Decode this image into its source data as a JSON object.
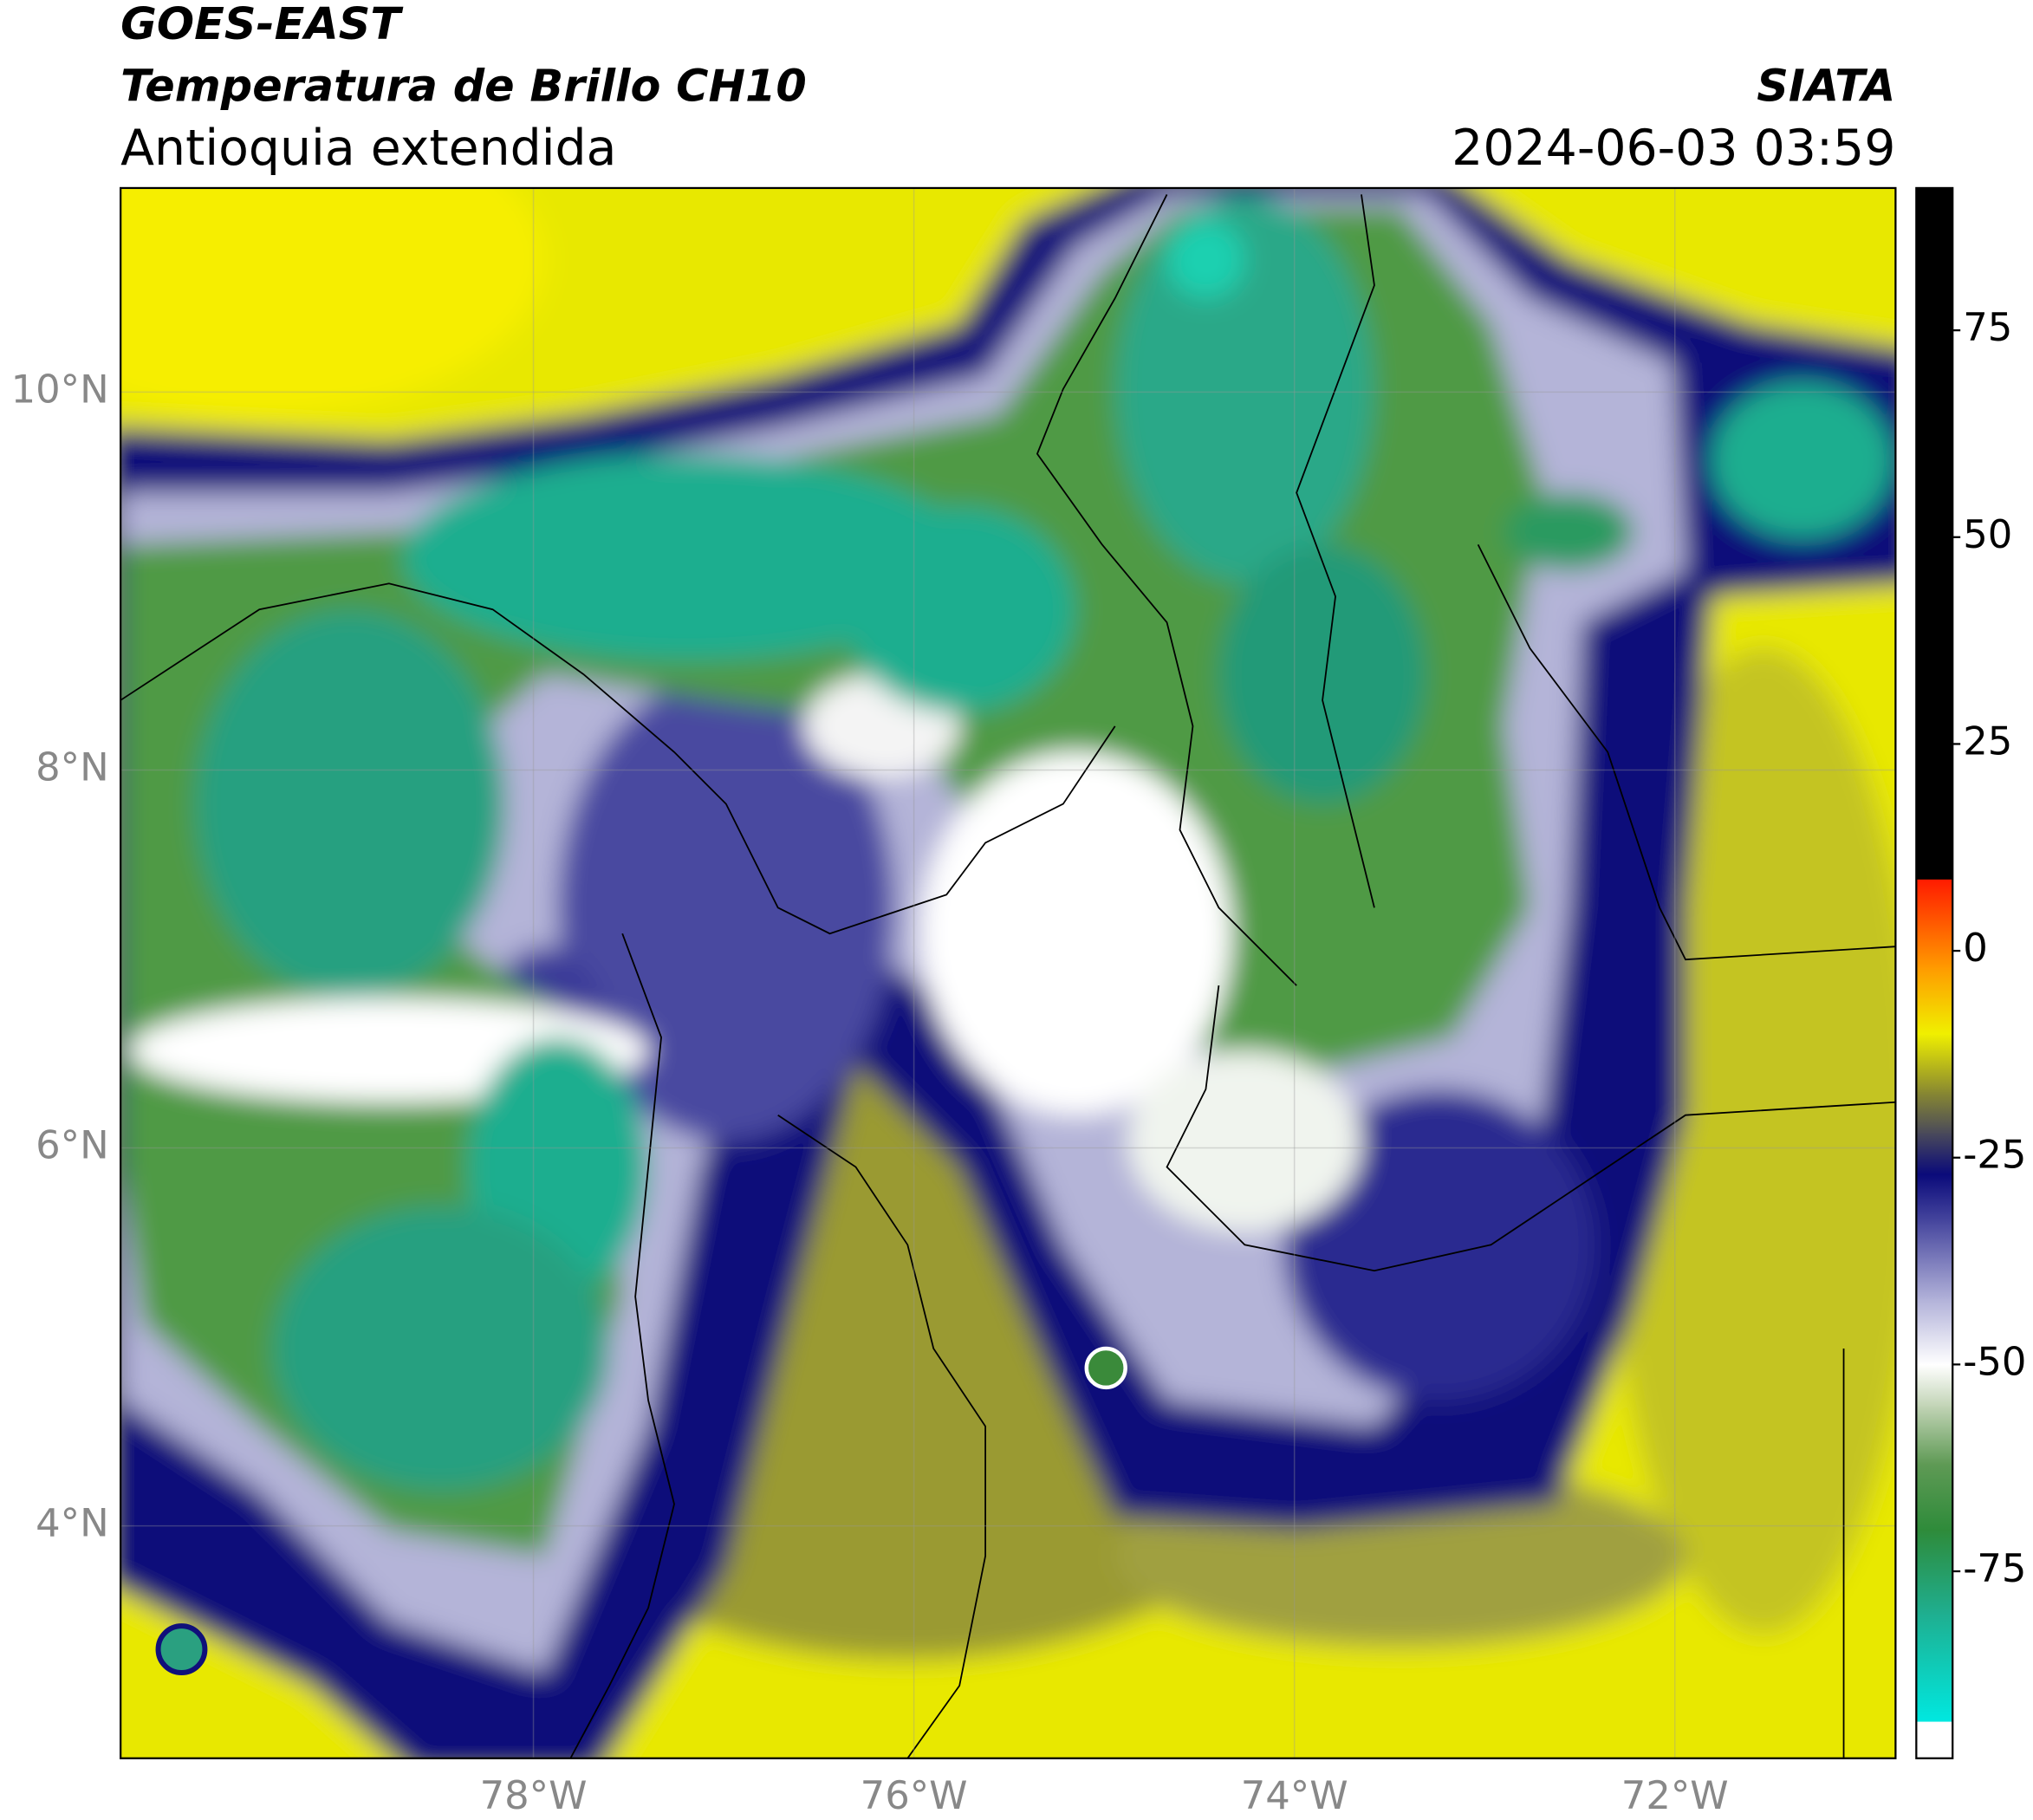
{
  "header": {
    "satellite": "GOES-EAST",
    "product": "Temperatura de Brillo CH10",
    "region": "Antioquia extendida",
    "source": "SIATA",
    "timestamp": "2024-06-03 03:59"
  },
  "map": {
    "xlim": [
      -80.17,
      -70.84
    ],
    "ylim": [
      2.77,
      11.08
    ],
    "xticks": [
      {
        "value": -78,
        "label": "78°W"
      },
      {
        "value": -76,
        "label": "76°W"
      },
      {
        "value": -74,
        "label": "74°W"
      },
      {
        "value": -72,
        "label": "72°W"
      }
    ],
    "yticks": [
      {
        "value": 4,
        "label": "4°N"
      },
      {
        "value": 6,
        "label": "6°N"
      },
      {
        "value": 8,
        "label": "8°N"
      },
      {
        "value": 10,
        "label": "10°N"
      }
    ],
    "grid": true
  },
  "colorbar": {
    "lim": [
      -97.6,
      92.2
    ],
    "ticks": [
      -75,
      -50,
      -25,
      0,
      25,
      50,
      75
    ],
    "stops": [
      {
        "value": -97.6,
        "color": "#ffffff"
      },
      {
        "value": -93.1,
        "color": "#ffffff"
      },
      {
        "value": -93.1,
        "color": "#00e8e0"
      },
      {
        "value": -80,
        "color": "#1fae8f"
      },
      {
        "value": -70,
        "color": "#2e8b3a"
      },
      {
        "value": -62,
        "color": "#5f9a55"
      },
      {
        "value": -55,
        "color": "#c2d4b6"
      },
      {
        "value": -50,
        "color": "#ffffff"
      },
      {
        "value": -42,
        "color": "#b0b0d8"
      },
      {
        "value": -33,
        "color": "#4a4aa0"
      },
      {
        "value": -27,
        "color": "#0a0a7a"
      },
      {
        "value": -22,
        "color": "#4a4a5a"
      },
      {
        "value": -17,
        "color": "#8a8a30"
      },
      {
        "value": -10,
        "color": "#f0f000"
      },
      {
        "value": -2,
        "color": "#ff9a00"
      },
      {
        "value": 8.7,
        "color": "#ff1a00"
      },
      {
        "value": 8.7,
        "color": "#000000"
      },
      {
        "value": 92.2,
        "color": "#000000"
      }
    ]
  }
}
